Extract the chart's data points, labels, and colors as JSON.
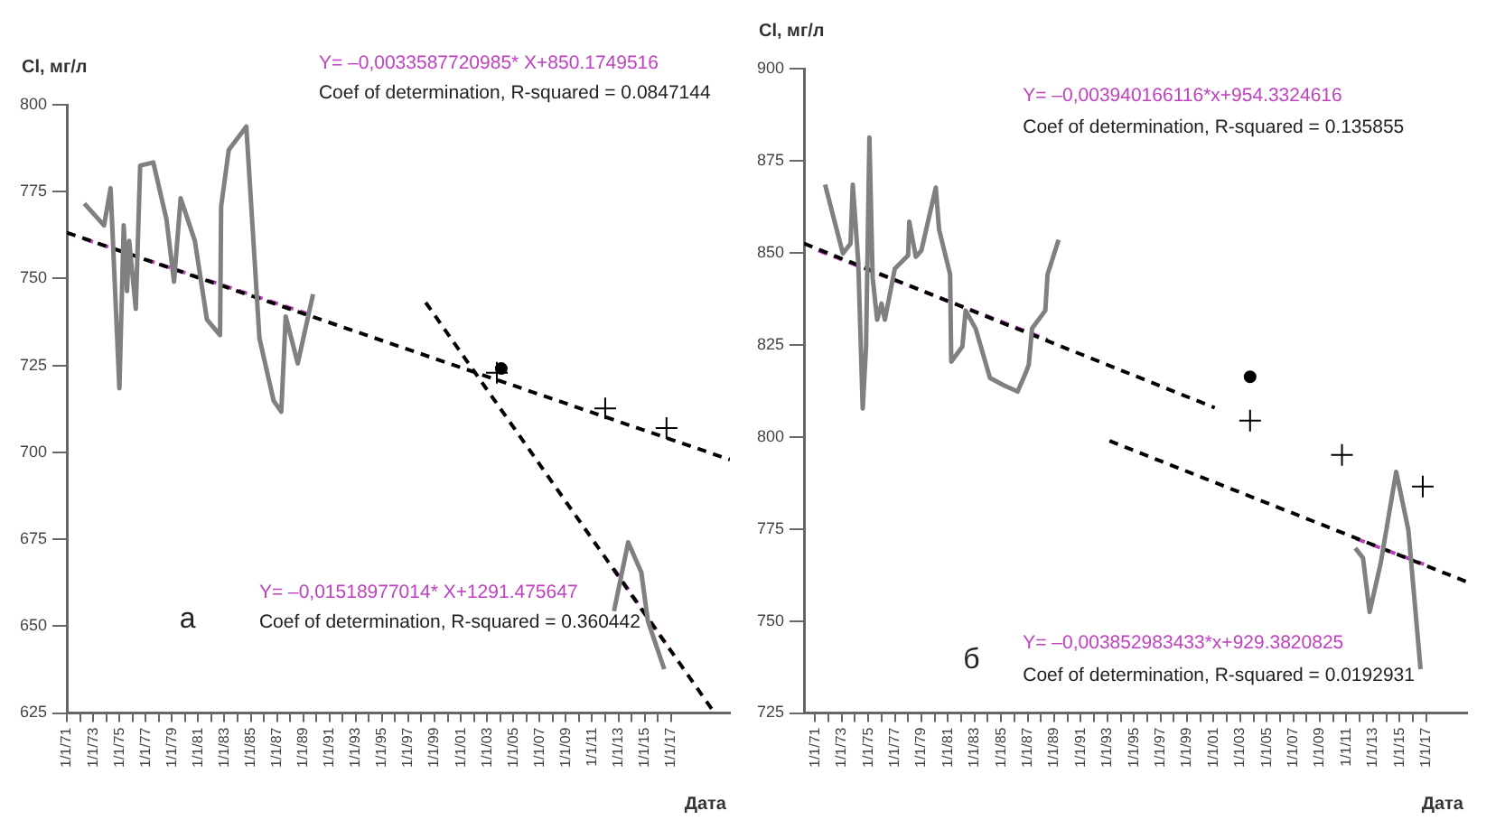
{
  "chart_data": [
    {
      "type": "line",
      "ylabel": "Cl, мг/л",
      "xlabel": "Дата",
      "xlim": [
        "1971-01",
        "2021-07"
      ],
      "ylim": [
        625,
        800
      ],
      "yticks": [
        625,
        650,
        675,
        700,
        725,
        750,
        775,
        800
      ],
      "xticks": [
        {
          "value": "1971-01-01",
          "label": "1/1/71"
        },
        {
          "value": "1972-01-01",
          "label": null
        },
        {
          "value": "1973-01-01",
          "label": "1/1/73"
        },
        {
          "value": "1974-01-01",
          "label": null
        },
        {
          "value": "1975-01-01",
          "label": "1/1/75"
        },
        {
          "value": "1976-01-01",
          "label": null
        },
        {
          "value": "1977-01-01",
          "label": "1/1/77"
        },
        {
          "value": "1978-01-01",
          "label": null
        },
        {
          "value": "1979-01-01",
          "label": "1/1/79"
        },
        {
          "value": "1980-01-01",
          "label": null
        },
        {
          "value": "1981-01-01",
          "label": "1/1/81"
        },
        {
          "value": "1982-01-01",
          "label": null
        },
        {
          "value": "1983-01-01",
          "label": "1/1/83"
        },
        {
          "value": "1984-01-01",
          "label": null
        },
        {
          "value": "1985-01-01",
          "label": "1/1/85"
        },
        {
          "value": "1986-01-01",
          "label": null
        },
        {
          "value": "1987-01-01",
          "label": "1/1/87"
        },
        {
          "value": "1988-01-01",
          "label": null
        },
        {
          "value": "1989-01-01",
          "label": "1/1/89"
        },
        {
          "value": "1990-01-01",
          "label": null
        },
        {
          "value": "1991-01-01",
          "label": "1/1/91"
        },
        {
          "value": "1992-01-01",
          "label": null
        },
        {
          "value": "1993-01-01",
          "label": "1/1/93"
        },
        {
          "value": "1994-01-01",
          "label": null
        },
        {
          "value": "1995-01-01",
          "label": "1/1/95"
        },
        {
          "value": "1996-01-01",
          "label": null
        },
        {
          "value": "1997-01-01",
          "label": "1/1/97"
        },
        {
          "value": "1998-01-01",
          "label": null
        },
        {
          "value": "1999-01-01",
          "label": "1/1/99"
        },
        {
          "value": "2000-01-01",
          "label": null
        },
        {
          "value": "2001-01-01",
          "label": "1/1/01"
        },
        {
          "value": "2002-01-01",
          "label": null
        },
        {
          "value": "2003-01-01",
          "label": "1/1/03"
        },
        {
          "value": "2004-01-01",
          "label": null
        },
        {
          "value": "2005-01-01",
          "label": "1/1/05"
        },
        {
          "value": "2006-01-01",
          "label": null
        },
        {
          "value": "2007-01-01",
          "label": "1/1/07"
        },
        {
          "value": "2008-01-01",
          "label": null
        },
        {
          "value": "2009-01-01",
          "label": "1/1/09"
        },
        {
          "value": "2010-01-01",
          "label": null
        },
        {
          "value": "2011-01-01",
          "label": "1/1/11"
        },
        {
          "value": "2012-01-01",
          "label": null
        },
        {
          "value": "2013-01-01",
          "label": "1/1/13"
        },
        {
          "value": "2014-01-01",
          "label": null
        },
        {
          "value": "2015-01-01",
          "label": "1/1/15"
        },
        {
          "value": "2016-01-01",
          "label": null
        },
        {
          "value": "2017-01-01",
          "label": "1/1/17"
        }
      ],
      "grid": false,
      "legend": false,
      "annotations": [
        "Y= –0,0033587720985* X+850.1749516",
        "Coef of determination, R-squared = 0.0847144",
        "Y= –0,01518977014* X+1291.475647",
        "Coef of determination, R-squared = 0.360442",
        "а"
      ],
      "series": [
        {
          "type": "line",
          "color": "#808080",
          "marker": "none",
          "line_style": "solid",
          "x": [
            "1972-05",
            "1973-11",
            "1974-05",
            "1975-01",
            "1975-05",
            "1975-08",
            "1975-10",
            "1976-04",
            "1976-08",
            "1977-08",
            "1978-08",
            "1979-03",
            "1979-09",
            "1980-10",
            "1981-09",
            "1982-09",
            "1982-10",
            "1983-05",
            "1984-09",
            "1985-09",
            "1986-10",
            "1987-05",
            "1987-09",
            "1988-08",
            "1989-10",
            "2001-01",
            "2012-09",
            "2013-10",
            "2014-10",
            "2015-04",
            "2016-07"
          ],
          "values": [
            771.6,
            765.3,
            776,
            718.4,
            765.3,
            746.4,
            760.8,
            741.3,
            782.5,
            783.4,
            767.1,
            749.1,
            773.1,
            760.8,
            738.2,
            733.7,
            770.7,
            787,
            793.7,
            732.8,
            714.8,
            711.7,
            739.1,
            725.6,
            745.5,
            null,
            654.3,
            674.1,
            665.5,
            651.5,
            637.6
          ]
        },
        {
          "type": "line",
          "color": "#000000",
          "marker": "none",
          "line_style": "dashed",
          "x": [
            "1971-01",
            "2021-07"
          ],
          "values": [
            763.2,
            697.9
          ]
        },
        {
          "type": "line",
          "color": "#000000",
          "marker": "none",
          "line_style": "dashed",
          "x": [
            "1998-05",
            "2020-05"
          ],
          "values": [
            743.1,
            625
          ]
        },
        {
          "type": "line",
          "color": "#b83fb8",
          "marker": "none",
          "line_style": "dashed",
          "x": [
            "1972-05",
            "1989-04"
          ],
          "values": [
            761.4,
            740.0
          ]
        },
        {
          "type": "line",
          "color": "#b83fb8",
          "marker": "none",
          "line_style": "dashed",
          "x": [
            "2012-09",
            "2016-08"
          ],
          "values": [
            666.5,
            645.2
          ]
        },
        {
          "type": "scatter",
          "color": "#000000",
          "marker": "circle",
          "x": [
            "2004-02"
          ],
          "values": [
            724.1
          ]
        },
        {
          "type": "scatter",
          "color": "#000000",
          "marker": "cross",
          "x": [
            "2003-10",
            "2012-01",
            "2016-09"
          ],
          "values": [
            722.9,
            712.6,
            707
          ]
        }
      ]
    },
    {
      "type": "line",
      "ylabel": "Cl, мг/л",
      "xlabel": "Дата",
      "xlim": [
        "1970-03",
        "2020-02"
      ],
      "ylim": [
        725,
        900
      ],
      "yticks": [
        725,
        750,
        775,
        800,
        825,
        850,
        875,
        900
      ],
      "xticks": [
        {
          "value": "1971-01-01",
          "label": "1/1/71"
        },
        {
          "value": "1972-01-01",
          "label": null
        },
        {
          "value": "1973-01-01",
          "label": "1/1/73"
        },
        {
          "value": "1974-01-01",
          "label": null
        },
        {
          "value": "1975-01-01",
          "label": "1/1/75"
        },
        {
          "value": "1976-01-01",
          "label": null
        },
        {
          "value": "1977-01-01",
          "label": "1/1/77"
        },
        {
          "value": "1978-01-01",
          "label": null
        },
        {
          "value": "1979-01-01",
          "label": "1/1/79"
        },
        {
          "value": "1980-01-01",
          "label": null
        },
        {
          "value": "1981-01-01",
          "label": "1/1/81"
        },
        {
          "value": "1982-01-01",
          "label": null
        },
        {
          "value": "1983-01-01",
          "label": "1/1/83"
        },
        {
          "value": "1984-01-01",
          "label": null
        },
        {
          "value": "1985-01-01",
          "label": "1/1/85"
        },
        {
          "value": "1986-01-01",
          "label": null
        },
        {
          "value": "1987-01-01",
          "label": "1/1/87"
        },
        {
          "value": "1988-01-01",
          "label": null
        },
        {
          "value": "1989-01-01",
          "label": "1/1/89"
        },
        {
          "value": "1990-01-01",
          "label": null
        },
        {
          "value": "1991-01-01",
          "label": "1/1/91"
        },
        {
          "value": "1992-01-01",
          "label": null
        },
        {
          "value": "1993-01-01",
          "label": "1/1/93"
        },
        {
          "value": "1994-01-01",
          "label": null
        },
        {
          "value": "1995-01-01",
          "label": "1/1/95"
        },
        {
          "value": "1996-01-01",
          "label": null
        },
        {
          "value": "1997-01-01",
          "label": "1/1/97"
        },
        {
          "value": "1998-01-01",
          "label": null
        },
        {
          "value": "1999-01-01",
          "label": "1/1/99"
        },
        {
          "value": "2000-01-01",
          "label": null
        },
        {
          "value": "2001-01-01",
          "label": "1/1/01"
        },
        {
          "value": "2002-01-01",
          "label": null
        },
        {
          "value": "2003-01-01",
          "label": "1/1/03"
        },
        {
          "value": "2004-01-01",
          "label": null
        },
        {
          "value": "2005-01-01",
          "label": "1/1/05"
        },
        {
          "value": "2006-01-01",
          "label": null
        },
        {
          "value": "2007-01-01",
          "label": "1/1/07"
        },
        {
          "value": "2008-01-01",
          "label": null
        },
        {
          "value": "2009-01-01",
          "label": "1/1/09"
        },
        {
          "value": "2010-01-01",
          "label": null
        },
        {
          "value": "2011-01-01",
          "label": "1/1/11"
        },
        {
          "value": "2012-01-01",
          "label": null
        },
        {
          "value": "2013-01-01",
          "label": "1/1/13"
        },
        {
          "value": "2014-01-01",
          "label": null
        },
        {
          "value": "2015-01-01",
          "label": "1/1/15"
        },
        {
          "value": "2016-01-01",
          "label": null
        },
        {
          "value": "2017-01-01",
          "label": "1/1/17"
        }
      ],
      "grid": false,
      "legend": false,
      "annotations": [
        "Y= –0,003940166116*x+954.3324616",
        "Coef of determination, R-squared = 0.135855",
        "Y= –0,003852983433*x+929.3820825",
        "Coef of determination, R-squared = 0.0192931",
        "б"
      ],
      "series": [
        {
          "type": "line",
          "color": "#808080",
          "marker": "none",
          "line_style": "solid",
          "x": [
            "1971-10",
            "1973-02",
            "1973-09",
            "1973-11",
            "1974-04",
            "1974-08",
            "1974-11",
            "1975-02",
            "1975-05",
            "1975-09",
            "1976-01",
            "1976-04",
            "1977-01",
            "1978-01",
            "1978-02",
            "1978-08",
            "1979-01",
            "1980-02",
            "1980-05",
            "1981-03",
            "1981-04",
            "1982-02",
            "1982-05",
            "1983-02",
            "1984-03",
            "1985-04",
            "1986-04",
            "1986-11",
            "1987-02",
            "1987-05",
            "1988-05",
            "1988-07",
            "1989-05",
            "2000-01",
            "2011-09",
            "2012-04",
            "2012-10",
            "2013-08",
            "2014-10",
            "2015-09",
            "2016-08"
          ],
          "values": [
            868.5,
            849.8,
            852.5,
            868.5,
            847.4,
            807.7,
            824.5,
            881.3,
            843.3,
            831.8,
            836.2,
            831.8,
            845.7,
            849.3,
            858.4,
            848.9,
            850.6,
            867.7,
            856.3,
            844.1,
            820.4,
            824.5,
            834.3,
            829.4,
            816.0,
            813.9,
            812.3,
            817.2,
            819.6,
            829.4,
            834.3,
            844.1,
            853.5,
            null,
            769.8,
            767.1,
            752.4,
            765.7,
            790.5,
            774.7,
            736.9
          ]
        },
        {
          "type": "line",
          "color": "#000000",
          "marker": "none",
          "line_style": "dashed",
          "x": [
            "1970-03",
            "2001-02"
          ],
          "values": [
            852.5,
            807.9
          ]
        },
        {
          "type": "line",
          "color": "#000000",
          "marker": "none",
          "line_style": "dashed",
          "x": [
            "1993-03",
            "2020-02"
          ],
          "values": [
            798.9,
            760.6
          ]
        },
        {
          "type": "line",
          "color": "#b83fb8",
          "marker": "none",
          "line_style": "dashed",
          "x": [
            "1971-04",
            "1988-07"
          ],
          "values": [
            850.6,
            826.4
          ]
        },
        {
          "type": "line",
          "color": "#b83fb8",
          "marker": "none",
          "line_style": "dashed",
          "x": [
            "2011-10",
            "2016-11"
          ],
          "values": [
            772.3,
            765.4
          ]
        },
        {
          "type": "scatter",
          "color": "#000000",
          "marker": "circle",
          "x": [
            "2003-10"
          ],
          "values": [
            816.3
          ]
        },
        {
          "type": "scatter",
          "color": "#000000",
          "marker": "cross",
          "x": [
            "2003-10",
            "2010-09",
            "2016-10"
          ],
          "values": [
            804.4,
            795.1,
            786.5
          ]
        }
      ]
    }
  ]
}
